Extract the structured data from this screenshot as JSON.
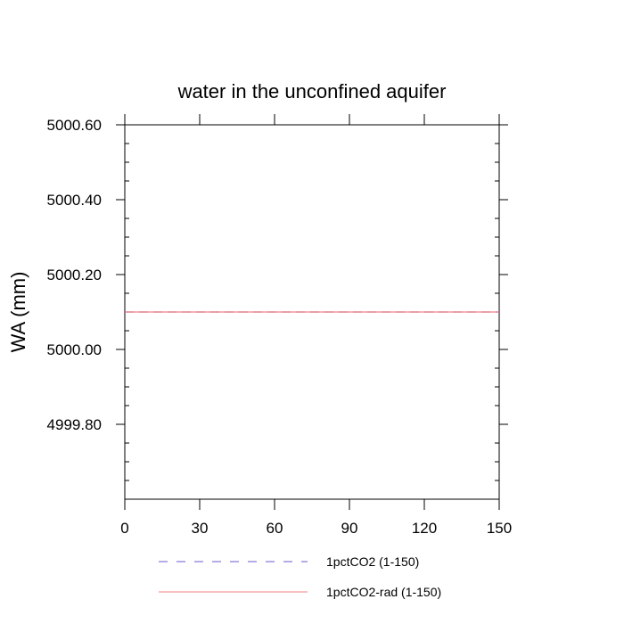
{
  "chart_data": {
    "type": "line",
    "title": "water in the unconfined aquifer",
    "xlabel": "",
    "ylabel": "WA  (mm)",
    "xlim": [
      0,
      150
    ],
    "ylim": [
      4999.6,
      5000.6
    ],
    "x_ticks": [
      0,
      30,
      60,
      90,
      120,
      150
    ],
    "x_tick_labels": [
      "0",
      "30",
      "60",
      "90",
      "120",
      "150"
    ],
    "y_ticks": [
      4999.8,
      5000.0,
      5000.2,
      5000.4,
      5000.6
    ],
    "y_tick_labels": [
      "4999.80",
      "5000.00",
      "5000.20",
      "5000.40",
      "5000.60"
    ],
    "grid": false,
    "legend_position": "bottom",
    "series": [
      {
        "name": "1pctCO2 (1-150)",
        "color": "#6a5acd",
        "dash": "dashed",
        "x": [
          0,
          30,
          60,
          90,
          120,
          150
        ],
        "values": [
          5000.1,
          5000.1,
          5000.1,
          5000.1,
          5000.1,
          5000.1
        ]
      },
      {
        "name": "1pctCO2-rad (1-150)",
        "color": "#f08080",
        "dash": "solid",
        "x": [
          0,
          30,
          60,
          90,
          120,
          150
        ],
        "values": [
          5000.1,
          5000.1,
          5000.1,
          5000.1,
          5000.1,
          5000.1
        ]
      }
    ]
  }
}
